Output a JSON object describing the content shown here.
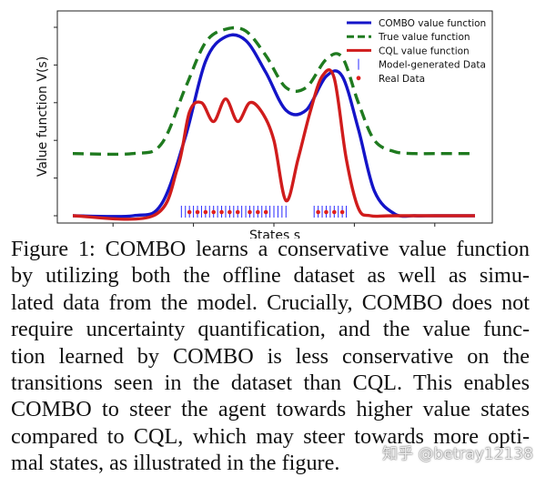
{
  "chart_data": {
    "type": "line",
    "xlabel": "States s",
    "ylabel": "Value function V(s)",
    "grid": false,
    "legend_position": "top-right",
    "x_range": [
      0,
      1
    ],
    "y_range": [
      0,
      1
    ],
    "series": [
      {
        "name": "COMBO value function",
        "style": "solid",
        "color": "#1414c8",
        "x": [
          0.0,
          0.15,
          0.22,
          0.28,
          0.33,
          0.38,
          0.43,
          0.48,
          0.53,
          0.58,
          0.63,
          0.67,
          0.71,
          0.75,
          0.8,
          0.85,
          0.9,
          1.0
        ],
        "y": [
          0.0,
          0.0,
          0.06,
          0.42,
          0.82,
          0.95,
          0.93,
          0.76,
          0.56,
          0.56,
          0.74,
          0.74,
          0.46,
          0.13,
          0.01,
          0.0,
          0.0,
          0.0
        ]
      },
      {
        "name": "True value function",
        "style": "dashed",
        "color": "#1f7a1f",
        "x": [
          0.0,
          0.15,
          0.22,
          0.28,
          0.33,
          0.38,
          0.43,
          0.48,
          0.53,
          0.58,
          0.63,
          0.67,
          0.71,
          0.75,
          0.8,
          0.85,
          0.9,
          1.0
        ],
        "y": [
          0.33,
          0.33,
          0.38,
          0.68,
          0.92,
          0.99,
          0.98,
          0.85,
          0.68,
          0.68,
          0.83,
          0.84,
          0.6,
          0.4,
          0.34,
          0.33,
          0.33,
          0.33
        ]
      },
      {
        "name": "CQL value function",
        "style": "solid",
        "color": "#d01c1c",
        "x": [
          0.0,
          0.2,
          0.26,
          0.29,
          0.32,
          0.35,
          0.38,
          0.41,
          0.44,
          0.47,
          0.5,
          0.53,
          0.56,
          0.59,
          0.62,
          0.65,
          0.68,
          0.71,
          0.74,
          0.8,
          1.0
        ],
        "y": [
          0.0,
          0.0,
          0.25,
          0.55,
          0.6,
          0.5,
          0.62,
          0.5,
          0.6,
          0.55,
          0.4,
          0.08,
          0.3,
          0.55,
          0.74,
          0.73,
          0.3,
          0.04,
          0.0,
          0.0,
          0.0
        ]
      }
    ],
    "scatter_series": [
      {
        "name": "Model-generated Data",
        "marker": "vline",
        "color": "#2a2aff",
        "x": [
          0.27,
          0.28,
          0.29,
          0.3,
          0.31,
          0.32,
          0.33,
          0.34,
          0.35,
          0.36,
          0.37,
          0.38,
          0.39,
          0.4,
          0.41,
          0.42,
          0.43,
          0.44,
          0.45,
          0.46,
          0.47,
          0.48,
          0.49,
          0.5,
          0.51,
          0.52,
          0.53,
          0.6,
          0.61,
          0.62,
          0.63,
          0.64,
          0.65,
          0.66,
          0.67,
          0.68
        ]
      },
      {
        "name": "Real Data",
        "marker": "dot",
        "color": "#e0201e",
        "x": [
          0.29,
          0.31,
          0.33,
          0.35,
          0.37,
          0.39,
          0.41,
          0.44,
          0.46,
          0.48,
          0.61,
          0.63,
          0.65,
          0.67
        ]
      }
    ]
  },
  "caption": {
    "lines": [
      "Figure 1: COMBO learns a conservative value function",
      "by utilizing both the offline dataset as well as simu-",
      "lated data from the model. Crucially, COMBO does not",
      "require uncertainty quantification, and the value func-",
      "tion learned by COMBO is less conservative on the",
      "transitions seen in the dataset than CQL. This enables",
      "COMBO to steer the agent towards higher value states",
      "compared to CQL, which may steer towards more opti-",
      "mal states, as illustrated in the figure."
    ]
  },
  "watermark": "知乎 @betray12138"
}
